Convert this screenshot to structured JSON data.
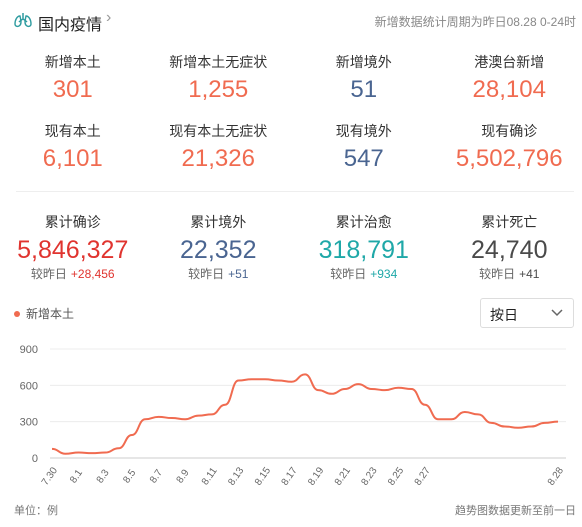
{
  "header": {
    "title": "国内疫情",
    "note": "新增数据统计周期为昨日08.28 0-24时"
  },
  "row1": [
    {
      "label": "新增本土",
      "value": "301",
      "color": "#f06b50"
    },
    {
      "label": "新增本土无症状",
      "value": "1,255",
      "color": "#f06b50"
    },
    {
      "label": "新增境外",
      "value": "51",
      "color": "#4a6591"
    },
    {
      "label": "港澳台新增",
      "value": "28,104",
      "color": "#f06b50"
    }
  ],
  "row2": [
    {
      "label": "现有本土",
      "value": "6,101",
      "color": "#f06b50"
    },
    {
      "label": "现有本土无症状",
      "value": "21,326",
      "color": "#f06b50"
    },
    {
      "label": "现有境外",
      "value": "547",
      "color": "#4a6591"
    },
    {
      "label": "现有确诊",
      "value": "5,502,796",
      "color": "#f06b50"
    }
  ],
  "row3": [
    {
      "label": "累计确诊",
      "value": "5,846,327",
      "color": "#e0342f",
      "delta_label": "较昨日",
      "delta": "+28,456",
      "delta_color": "#e0342f"
    },
    {
      "label": "累计境外",
      "value": "22,352",
      "color": "#4a6591",
      "delta_label": "较昨日",
      "delta": "+51",
      "delta_color": "#4a6591"
    },
    {
      "label": "累计治愈",
      "value": "318,791",
      "color": "#1fa8a8",
      "delta_label": "较昨日",
      "delta": "+934",
      "delta_color": "#1fa8a8"
    },
    {
      "label": "累计死亡",
      "value": "24,740",
      "color": "#4a4a4a",
      "delta_label": "较昨日",
      "delta": "+41",
      "delta_color": "#4a4a4a"
    }
  ],
  "chart_controls": {
    "legend": "新增本土",
    "select_value": "按日",
    "unit": "单位：例",
    "footnote": "趋势图数据更新至前一日"
  },
  "chart_data": {
    "type": "line",
    "series": [
      {
        "name": "新增本土",
        "color": "#f06b50",
        "values": [
          75,
          35,
          45,
          40,
          45,
          80,
          190,
          320,
          340,
          330,
          320,
          350,
          360,
          440,
          640,
          650,
          650,
          640,
          630,
          690,
          560,
          530,
          570,
          610,
          570,
          560,
          580,
          570,
          440,
          320,
          320,
          380,
          360,
          290,
          260,
          250,
          260,
          290,
          300
        ]
      }
    ],
    "x_tick_labels": [
      "7.30",
      "8.1",
      "8.3",
      "8.5",
      "8.7",
      "8.9",
      "8.11",
      "8.13",
      "8.15",
      "8.17",
      "8.19",
      "8.21",
      "8.23",
      "8.25",
      "8.27",
      "8.28"
    ],
    "yticks": [
      0,
      300,
      600,
      900
    ],
    "ylim": [
      0,
      900
    ]
  }
}
